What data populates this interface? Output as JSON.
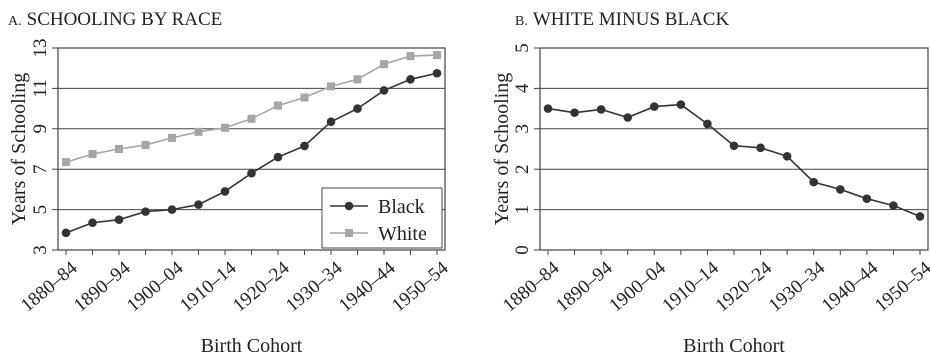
{
  "chart_data": [
    {
      "type": "line",
      "title_prefix": "A.",
      "title": "SCHOOLING BY RACE",
      "xlabel": "Birth Cohort",
      "ylabel": "Years of Schooling",
      "ylim": [
        3,
        13
      ],
      "yticks": [
        3,
        5,
        7,
        9,
        11,
        13
      ],
      "grid": true,
      "legend": "bottom-right",
      "categories": [
        "1880–84",
        "1885–89",
        "1890–94",
        "1895–99",
        "1900–04",
        "1905–09",
        "1910–14",
        "1915–19",
        "1920–24",
        "1925–29",
        "1930–34",
        "1935–39",
        "1940–44",
        "1945–49",
        "1950–54"
      ],
      "tick_labels": [
        "1880–84",
        "",
        "1890–94",
        "",
        "1900–04",
        "",
        "1910–14",
        "",
        "1920–24",
        "",
        "1930–34",
        "",
        "1940–44",
        "",
        "1950–54"
      ],
      "series": [
        {
          "name": "Black",
          "color": "#333333",
          "marker": "circle",
          "values": [
            3.85,
            4.35,
            4.5,
            4.9,
            5.0,
            5.25,
            5.9,
            6.8,
            7.6,
            8.15,
            9.35,
            10.0,
            10.9,
            11.45,
            11.75
          ]
        },
        {
          "name": "White",
          "color": "#a6a6a6",
          "marker": "square",
          "values": [
            7.35,
            7.75,
            8.0,
            8.2,
            8.55,
            8.85,
            9.05,
            9.5,
            10.15,
            10.55,
            11.1,
            11.45,
            12.2,
            12.6,
            12.65
          ]
        }
      ]
    },
    {
      "type": "line",
      "title_prefix": "B.",
      "title": "WHITE MINUS BLACK",
      "xlabel": "Birth Cohort",
      "ylabel": "Years of Schooling",
      "ylim": [
        0,
        5
      ],
      "yticks": [
        0,
        1,
        2,
        3,
        4,
        5
      ],
      "grid": true,
      "legend": "none",
      "categories": [
        "1880–84",
        "1885–89",
        "1890–94",
        "1895–99",
        "1900–04",
        "1905–09",
        "1910–14",
        "1915–19",
        "1920–24",
        "1925–29",
        "1930–34",
        "1935–39",
        "1940–44",
        "1945–49",
        "1950–54"
      ],
      "tick_labels": [
        "1880–84",
        "",
        "1890–94",
        "",
        "1900–04",
        "",
        "1910–14",
        "",
        "1920–24",
        "",
        "1930–34",
        "",
        "1940–44",
        "",
        "1950–54"
      ],
      "series": [
        {
          "name": "",
          "color": "#333333",
          "marker": "circle",
          "values": [
            3.5,
            3.4,
            3.48,
            3.28,
            3.55,
            3.6,
            3.12,
            2.58,
            2.53,
            2.32,
            1.68,
            1.5,
            1.27,
            1.1,
            0.83
          ]
        }
      ]
    }
  ]
}
